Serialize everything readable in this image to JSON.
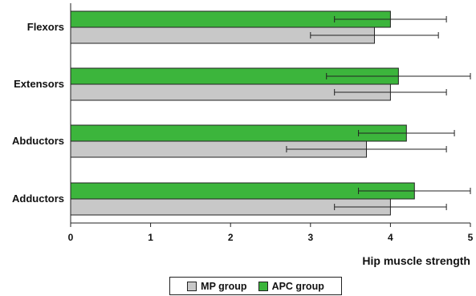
{
  "chart_data": {
    "type": "bar",
    "orientation": "horizontal",
    "categories": [
      "Flexors",
      "Extensors",
      "Abductors",
      "Adductors"
    ],
    "series": [
      {
        "name": "APC group",
        "color": "#3cb53c",
        "values": [
          4.0,
          4.1,
          4.2,
          4.3
        ],
        "errors": [
          0.7,
          0.9,
          0.6,
          0.7
        ]
      },
      {
        "name": "MP group",
        "color": "#c8c8c8",
        "values": [
          3.8,
          4.0,
          3.7,
          4.0
        ],
        "errors": [
          0.8,
          0.7,
          1.0,
          0.7
        ]
      }
    ],
    "xlabel": "Hip muscle strength",
    "xlim": [
      0,
      5
    ],
    "xticks": [
      "0",
      "1",
      "2",
      "3",
      "4",
      "5"
    ],
    "grid": false,
    "legend": {
      "placement": "bottom-center",
      "order": [
        "MP group",
        "APC group"
      ]
    }
  }
}
